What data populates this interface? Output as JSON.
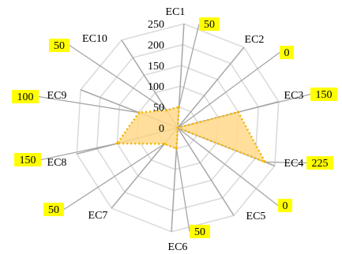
{
  "chart_data": {
    "type": "radar",
    "categories": [
      "EC1",
      "EC2",
      "EC3",
      "EC4",
      "EC5",
      "EC6",
      "EC7",
      "EC8",
      "EC9",
      "EC10"
    ],
    "series": [
      {
        "values": [
          50,
          0,
          150,
          225,
          0,
          50,
          50,
          150,
          100,
          50
        ]
      }
    ],
    "r_ticks": [
      0,
      50,
      100,
      150,
      200,
      250
    ],
    "rlim": [
      0,
      250
    ],
    "grid": true,
    "legend": "none",
    "data_labels": [
      "50",
      "0",
      "150",
      "225",
      "0",
      "50",
      "50",
      "150",
      "100",
      "50"
    ],
    "colors": {
      "fill": "#FFD98A",
      "stroke": "#F5B400",
      "grid": "#D9D9D9",
      "axis": "#A6A6A6",
      "label_bg": "#FFFF00",
      "leader": "#A6A6A6"
    }
  }
}
